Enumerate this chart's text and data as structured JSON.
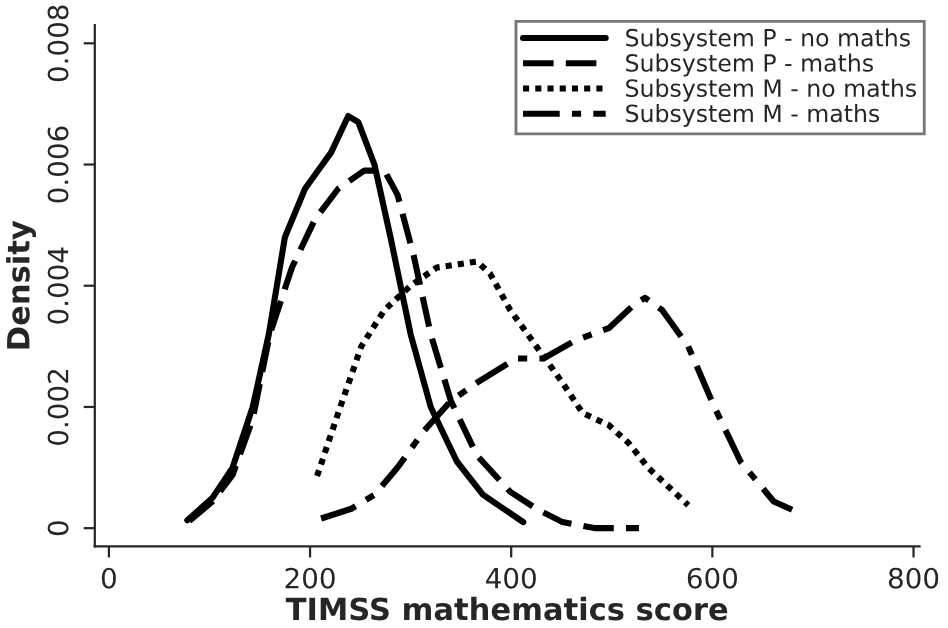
{
  "chart_data": {
    "type": "line",
    "xlabel": "TIMSS mathematics score",
    "ylabel": "Density",
    "xlim": [
      -14,
      806
    ],
    "ylim": [
      -0.0003,
      0.0083
    ],
    "xticks": [
      0,
      200,
      400,
      600,
      800
    ],
    "yticks": [
      0,
      0.002,
      0.004,
      0.006,
      0.008
    ],
    "grid": false,
    "legend": "top right",
    "series": [
      {
        "name": "Subsystem P - no maths",
        "color": "#000000",
        "line_style": "solid",
        "x": [
          78,
          103,
          123,
          143,
          159,
          175,
          195,
          208,
          221,
          238,
          248,
          264,
          280,
          300,
          320,
          346,
          372,
          412
        ],
        "values": [
          0.00013,
          0.0005,
          0.001,
          0.002,
          0.0032,
          0.0048,
          0.0056,
          0.0059,
          0.0062,
          0.0068,
          0.0067,
          0.006,
          0.0048,
          0.0032,
          0.002,
          0.0011,
          0.00055,
          0.0001
        ]
      },
      {
        "name": "Subsystem P - maths",
        "color": "#000000",
        "line_style": "dashed",
        "x": [
          80,
          103,
          123,
          143,
          160,
          182,
          205,
          228,
          254,
          274,
          287,
          303,
          320,
          340,
          366,
          399,
          425,
          451,
          484,
          527
        ],
        "values": [
          0.00012,
          0.00044,
          0.00088,
          0.0018,
          0.0032,
          0.0043,
          0.0051,
          0.0056,
          0.0059,
          0.0059,
          0.0055,
          0.0045,
          0.0032,
          0.0021,
          0.0012,
          0.0006,
          0.00032,
          0.0001,
          0,
          0
        ]
      },
      {
        "name": "Subsystem M - no maths",
        "color": "#000000",
        "line_style": "dotted",
        "x": [
          207,
          228,
          251,
          274,
          300,
          326,
          366,
          379,
          399,
          425,
          451,
          471,
          497,
          517,
          536,
          576
        ],
        "values": [
          0.00086,
          0.0019,
          0.003,
          0.0036,
          0.004,
          0.0043,
          0.0044,
          0.0042,
          0.0036,
          0.003,
          0.0024,
          0.0019,
          0.0017,
          0.0014,
          0.001,
          0.00038
        ]
      },
      {
        "name": "Subsystem M - maths",
        "color": "#000000",
        "line_style": "dashdot",
        "x": [
          211,
          241,
          264,
          287,
          313,
          340,
          366,
          405,
          432,
          464,
          497,
          523,
          533,
          550,
          576,
          602,
          628,
          661,
          684
        ],
        "values": [
          0.00016,
          0.00032,
          0.00055,
          0.001,
          0.0016,
          0.0021,
          0.0024,
          0.0028,
          0.0028,
          0.0031,
          0.0033,
          0.0037,
          0.0038,
          0.0036,
          0.003,
          0.002,
          0.0011,
          0.00044,
          0.00027
        ]
      }
    ]
  }
}
